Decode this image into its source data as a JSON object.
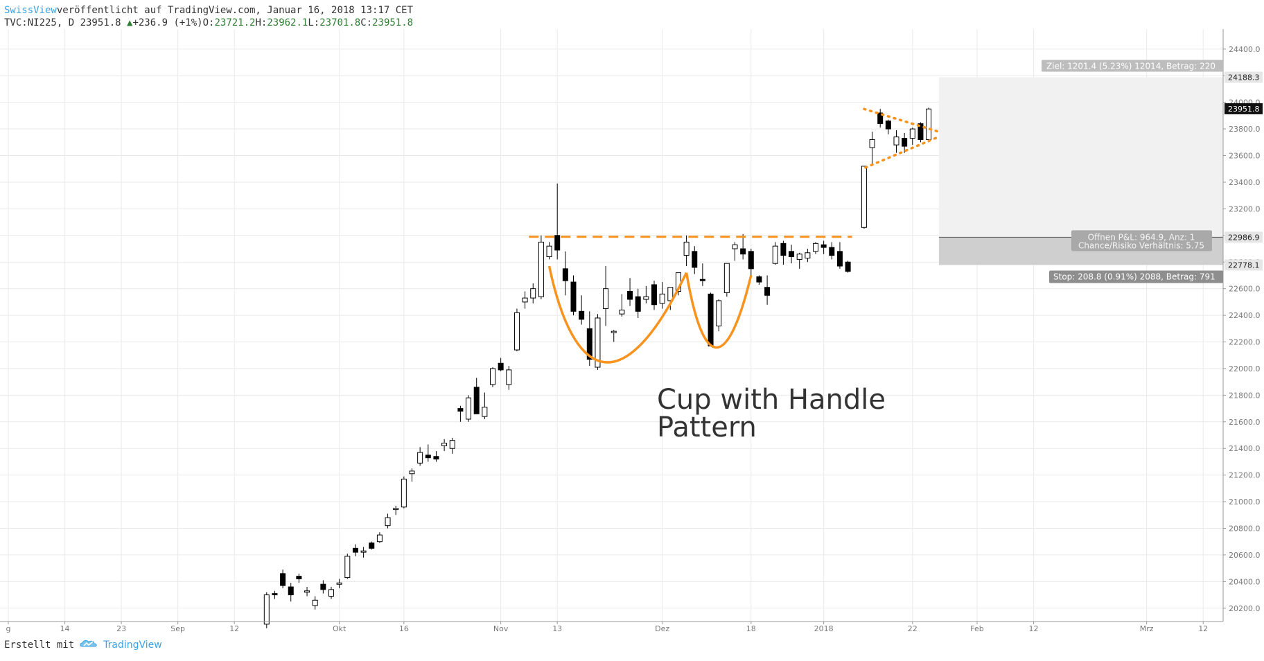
{
  "header": {
    "publisher": "SwissView",
    "published_text": " veröffentlicht auf TradingView.com, Januar 16, 2018 13:17 CET",
    "symbol_line": "TVC:NI225, D 23951.8",
    "change_arrow": "▲",
    "change_text": "+236.9 (+1%)",
    "o_label": " O:",
    "o_value": "23721.2",
    "h_label": " H:",
    "h_value": "23962.1",
    "l_label": " L:",
    "l_value": "23701.8",
    "c_label": " C:",
    "c_value": "23951.8"
  },
  "footer": {
    "created_with": "Erstellt mit",
    "brand": "TradingView",
    "logo_icon": "tradingview-cloud-icon"
  },
  "annotation": {
    "line1": "Cup with Handle",
    "line2": "Pattern"
  },
  "position_tool": {
    "target_label": "Ziel: 1201.4 (5.23%) 12014, Betrag: 220",
    "pnl_line1": "Offnen P&L: 964.9, Anz: 1",
    "pnl_line2": "Chance/Risiko Verhältnis: 5.75",
    "stop_label": "Stop: 208.8 (0.91%) 2088, Betrag: 791",
    "target_price_tag": "24188.3",
    "entry_price_tag": "22986.9",
    "stop_price_tag": "22778.1",
    "last_price_tag": "23951.8"
  },
  "colors": {
    "bull_fill": "#ffffff",
    "bear_fill": "#000000",
    "pattern": "#f7931e",
    "grid": "#e9e9e9",
    "axis_text": "#777777",
    "target_zone": "#eeeeee",
    "stop_zone": "#c9c9c9"
  },
  "chart_data": {
    "type": "candlestick",
    "ylim": [
      20100,
      24550
    ],
    "y_ticks": [
      20200,
      20400,
      20600,
      20800,
      21000,
      21200,
      21400,
      21600,
      21800,
      22000,
      22200,
      22400,
      22600,
      22800,
      23000,
      23200,
      23400,
      23600,
      23800,
      24000,
      24200,
      24400
    ],
    "x_ticks": [
      {
        "label": "g",
        "slot": 0
      },
      {
        "label": "14",
        "slot": 7
      },
      {
        "label": "23",
        "slot": 14
      },
      {
        "label": "Sep",
        "slot": 21
      },
      {
        "label": "12",
        "slot": 28
      },
      {
        "label": "Okt",
        "slot": 41
      },
      {
        "label": "16",
        "slot": 49
      },
      {
        "label": "Nov",
        "slot": 61
      },
      {
        "label": "13",
        "slot": 68
      },
      {
        "label": "Dez",
        "slot": 81
      },
      {
        "label": "18",
        "slot": 92
      },
      {
        "label": "2018",
        "slot": 101
      },
      {
        "label": "22",
        "slot": 112
      },
      {
        "label": "Feb",
        "slot": 120
      },
      {
        "label": "12",
        "slot": 127
      },
      {
        "label": "Mrz",
        "slot": 141
      },
      {
        "label": "12",
        "slot": 148
      }
    ],
    "first_candle_slot": 32,
    "candles": [
      [
        20080,
        20320,
        20050,
        20300
      ],
      [
        20310,
        20330,
        20270,
        20300
      ],
      [
        20460,
        20490,
        20350,
        20370
      ],
      [
        20360,
        20390,
        20250,
        20300
      ],
      [
        20440,
        20460,
        20390,
        20420
      ],
      [
        20320,
        20360,
        20290,
        20330
      ],
      [
        20220,
        20290,
        20190,
        20260
      ],
      [
        20380,
        20410,
        20310,
        20340
      ],
      [
        20290,
        20360,
        20270,
        20340
      ],
      [
        20380,
        20420,
        20350,
        20390
      ],
      [
        20430,
        20610,
        20420,
        20590
      ],
      [
        20650,
        20680,
        20590,
        20620
      ],
      [
        20620,
        20660,
        20580,
        20630
      ],
      [
        20690,
        20700,
        20640,
        20650
      ],
      [
        20700,
        20770,
        20690,
        20750
      ],
      [
        20820,
        20910,
        20800,
        20880
      ],
      [
        20940,
        20970,
        20900,
        20950
      ],
      [
        20960,
        21190,
        20950,
        21170
      ],
      [
        21210,
        21250,
        21150,
        21230
      ],
      [
        21290,
        21410,
        21270,
        21370
      ],
      [
        21350,
        21430,
        21300,
        21330
      ],
      [
        21340,
        21380,
        21300,
        21320
      ],
      [
        21420,
        21470,
        21380,
        21440
      ],
      [
        21400,
        21480,
        21360,
        21460
      ],
      [
        21700,
        21720,
        21600,
        21680
      ],
      [
        21620,
        21800,
        21600,
        21780
      ],
      [
        21860,
        21930,
        21700,
        21660
      ],
      [
        21640,
        21820,
        21620,
        21710
      ],
      [
        21880,
        22010,
        21860,
        22000
      ],
      [
        22040,
        22080,
        21980,
        21990
      ],
      [
        21880,
        22020,
        21840,
        21990
      ],
      [
        22140,
        22450,
        22130,
        22420
      ],
      [
        22500,
        22580,
        22450,
        22530
      ],
      [
        22530,
        22640,
        22490,
        22600
      ],
      [
        22540,
        23000,
        22520,
        22950
      ],
      [
        22840,
        22950,
        22820,
        22920
      ],
      [
        23000,
        23390,
        22820,
        22890
      ],
      [
        22750,
        22880,
        22550,
        22660
      ],
      [
        22650,
        22700,
        22400,
        22430
      ],
      [
        22430,
        22550,
        22330,
        22370
      ],
      [
        22300,
        22430,
        22020,
        22070
      ],
      [
        22010,
        22410,
        21990,
        22380
      ],
      [
        22450,
        22770,
        22320,
        22600
      ],
      [
        22270,
        22290,
        22200,
        22280
      ],
      [
        22410,
        22560,
        22390,
        22440
      ],
      [
        22580,
        22680,
        22470,
        22520
      ],
      [
        22540,
        22600,
        22380,
        22430
      ],
      [
        22520,
        22620,
        22490,
        22540
      ],
      [
        22630,
        22660,
        22440,
        22480
      ],
      [
        22490,
        22650,
        22450,
        22560
      ],
      [
        22510,
        22600,
        22440,
        22610
      ],
      [
        22580,
        22690,
        22550,
        22720
      ],
      [
        22850,
        23000,
        22770,
        22950
      ],
      [
        22880,
        22920,
        22710,
        22760
      ],
      [
        22670,
        22790,
        22620,
        22660
      ],
      [
        22560,
        22570,
        22180,
        22170
      ],
      [
        22320,
        22520,
        22280,
        22510
      ],
      [
        22570,
        22790,
        22540,
        22790
      ],
      [
        22900,
        22950,
        22810,
        22930
      ],
      [
        22900,
        23010,
        22820,
        22860
      ],
      [
        22880,
        22900,
        22680,
        22750
      ],
      [
        22690,
        22700,
        22630,
        22650
      ],
      [
        22610,
        22700,
        22480,
        22550
      ],
      [
        22790,
        22950,
        22780,
        22920
      ],
      [
        22940,
        22960,
        22780,
        22850
      ],
      [
        22880,
        22930,
        22790,
        22840
      ],
      [
        22820,
        22870,
        22750,
        22860
      ],
      [
        22830,
        22900,
        22800,
        22870
      ],
      [
        22880,
        22950,
        22860,
        22940
      ],
      [
        22930,
        22960,
        22860,
        22910
      ],
      [
        22910,
        22950,
        22820,
        22850
      ],
      [
        22880,
        22950,
        22750,
        22770
      ],
      [
        22800,
        22810,
        22720,
        22730
      ],
      null,
      [
        23060,
        23520,
        23050,
        23520
      ],
      [
        23660,
        23780,
        23530,
        23720
      ],
      [
        23920,
        23950,
        23810,
        23840
      ],
      [
        23860,
        23870,
        23760,
        23800
      ],
      [
        23680,
        23790,
        23620,
        23740
      ],
      [
        23730,
        23770,
        23620,
        23670
      ],
      [
        23730,
        23810,
        23680,
        23800
      ],
      [
        23840,
        23850,
        23700,
        23720
      ],
      [
        23720,
        23960,
        23700,
        23950
      ]
    ]
  }
}
